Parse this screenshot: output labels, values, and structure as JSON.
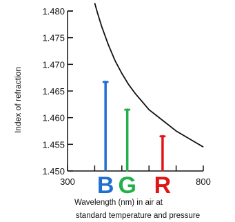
{
  "chart_data": {
    "type": "line",
    "title": "",
    "ylabel": "Index of refraction",
    "xlabel_lines": [
      "Wavelength (nm) in air at",
      "standard temperature and pressure"
    ],
    "xlim": [
      300,
      800
    ],
    "ylim": [
      1.45,
      1.48
    ],
    "y_ticks": [
      1.45,
      1.455,
      1.46,
      1.465,
      1.47,
      1.475,
      1.48
    ],
    "y_tick_labels": [
      "1.450",
      "1.455",
      "1.460",
      "1.465",
      "1.470",
      "1.475",
      "1.480"
    ],
    "x_ticks": [
      300,
      400,
      500,
      600,
      700,
      800
    ],
    "x_tick_labels": [
      "300",
      "",
      "",
      "",
      "",
      "800"
    ],
    "series": [
      {
        "x": [
          400,
          410,
          425,
          450,
          475,
          500,
          525,
          550,
          575,
          600,
          650,
          700,
          750,
          800
        ],
        "y": [
          1.4815,
          1.4797,
          1.4772,
          1.4737,
          1.4707,
          1.4683,
          1.4662,
          1.4645,
          1.463,
          1.4615,
          1.4595,
          1.4575,
          1.456,
          1.4545
        ]
      }
    ],
    "annotations": [
      {
        "label": "B",
        "color": "#1f6fd1",
        "x": 440,
        "y": 1.4667
      },
      {
        "label": "G",
        "color": "#22b04a",
        "x": 520,
        "y": 1.4615
      },
      {
        "label": "R",
        "color": "#e01515",
        "x": 650,
        "y": 1.4565
      }
    ]
  }
}
